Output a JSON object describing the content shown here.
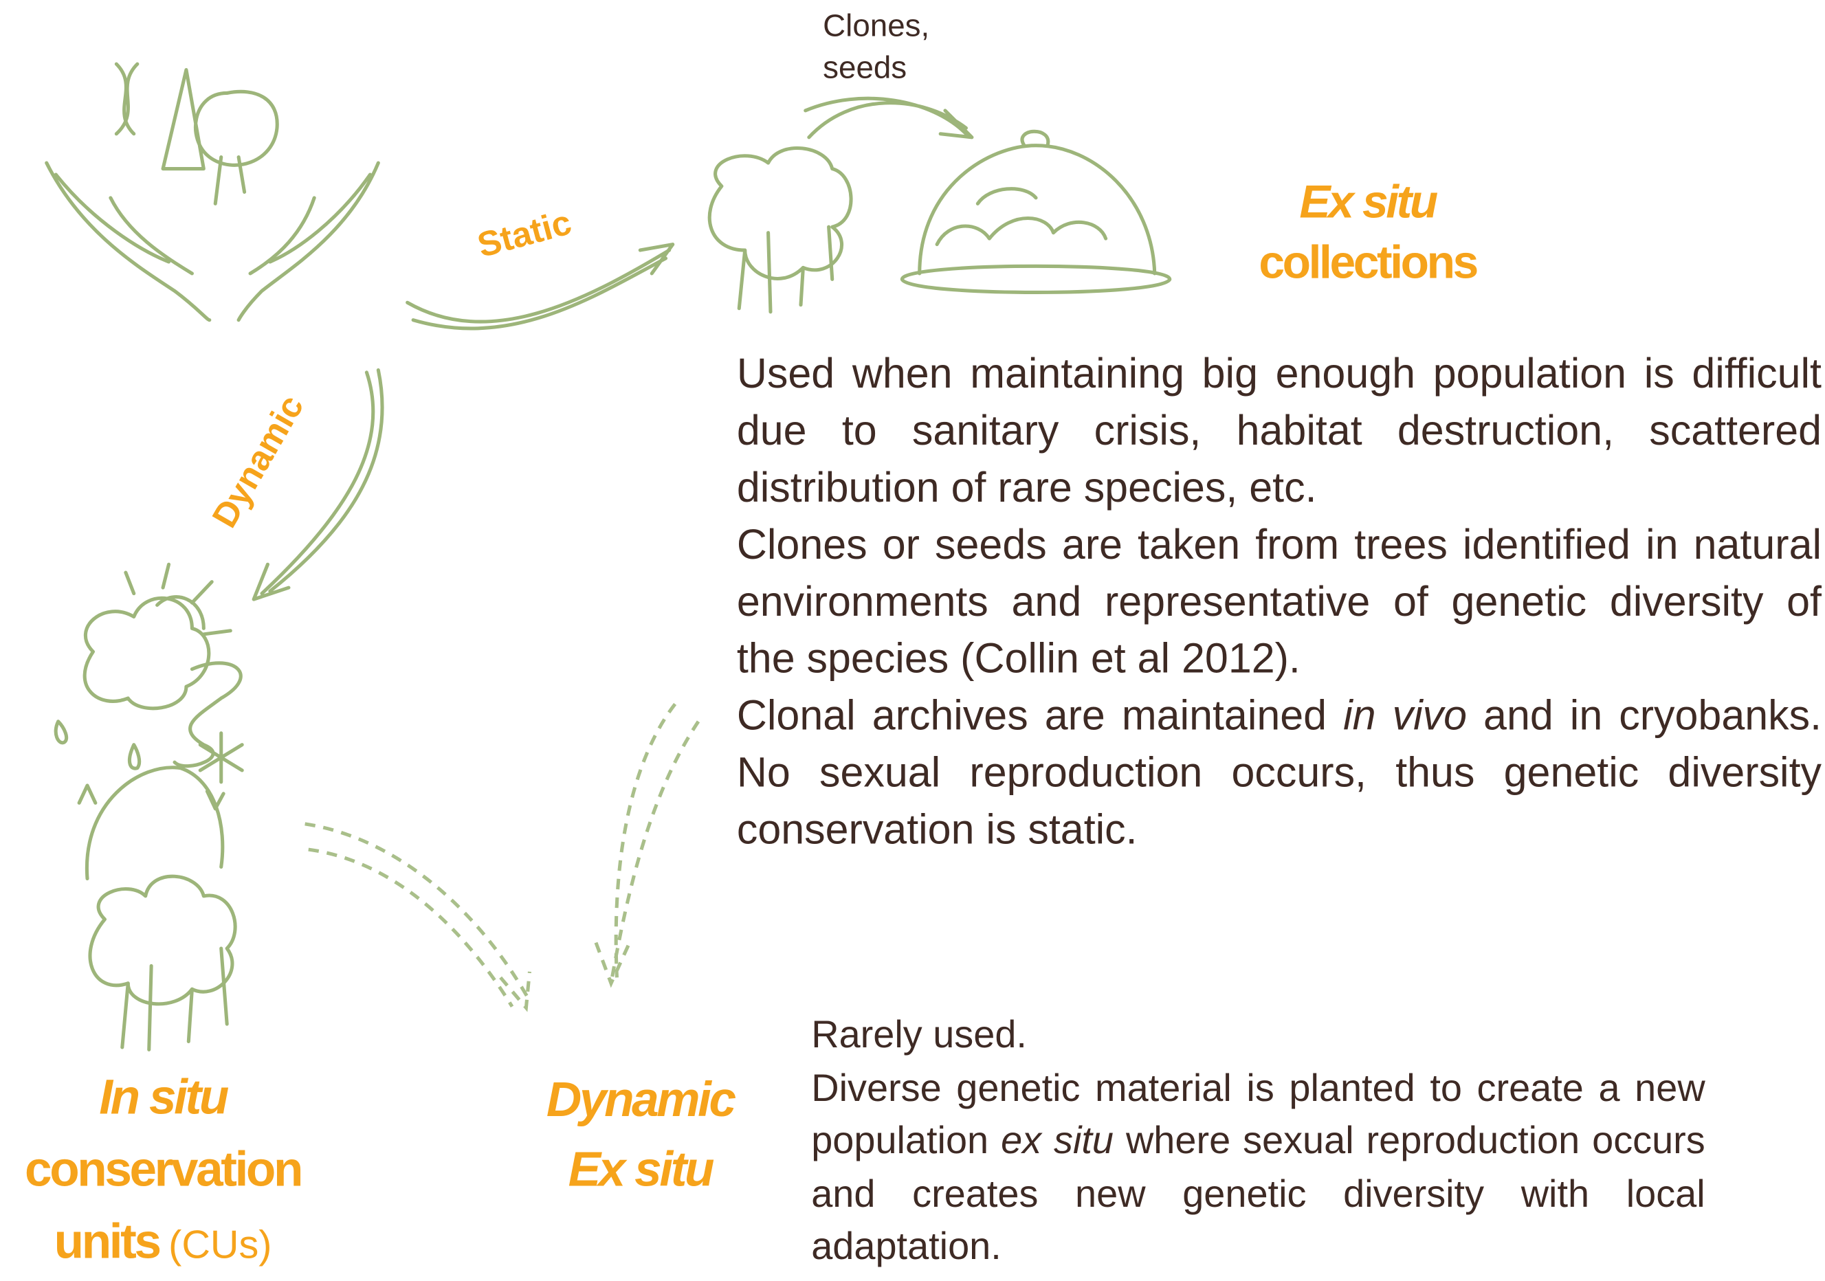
{
  "arrows": {
    "static": "Static",
    "dynamic": "Dynamic",
    "clones_seeds": [
      "Clones,",
      "seeds"
    ]
  },
  "ex_situ": {
    "title": [
      {
        "text": "Ex situ",
        "italic": true
      },
      {
        "text": "collections",
        "italic": false
      }
    ],
    "description": [
      [
        {
          "text": "Used when maintaining big enough population is difficult due to sanitary crisis, habitat destruction, scattered distribution of rare species, etc.",
          "italic": false
        }
      ],
      [
        {
          "text": "Clones or seeds are taken from trees identified in natural environments and representative of genetic diversity of the species (Collin et al 2012).",
          "italic": false
        }
      ],
      [
        {
          "text": "Clonal archives are maintained ",
          "italic": false
        },
        {
          "text": "in vivo",
          "italic": true
        },
        {
          "text": " and in cryobanks. No sexual reproduction occurs, thus genetic diversity conservation is static.",
          "italic": false
        }
      ]
    ]
  },
  "in_situ": {
    "title": [
      {
        "text": "In situ",
        "italic": true
      },
      {
        "text": "conservation",
        "italic": false
      },
      {
        "text": "units",
        "italic": false
      }
    ],
    "suffix": "(CUs)"
  },
  "dynamic_ex_situ": {
    "title": [
      {
        "text": "Dynamic",
        "italic": true
      },
      {
        "text": "Ex situ",
        "italic": true
      }
    ],
    "description": [
      [
        {
          "text": "Rarely used.",
          "italic": false
        }
      ],
      [
        {
          "text": "Diverse genetic material is planted to create a new population ",
          "italic": false
        },
        {
          "text": "ex situ",
          "italic": true
        },
        {
          "text": " where sexual reproduction occurs and creates new genetic diversity with local adaptation.",
          "italic": false
        }
      ]
    ]
  }
}
